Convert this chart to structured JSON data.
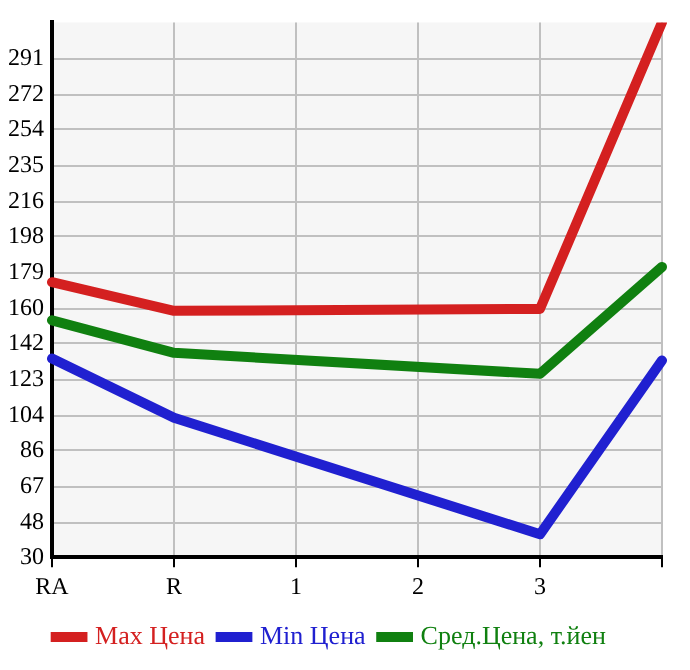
{
  "chart_data": {
    "type": "line",
    "categories": [
      "RA",
      "R",
      "1",
      "2",
      "3",
      null
    ],
    "series": [
      {
        "name": "Max Цена",
        "color": "#d42020",
        "values": [
          174,
          159,
          null,
          null,
          160,
          310
        ]
      },
      {
        "name": "Min Цена",
        "color": "#2020d0",
        "values": [
          134,
          103,
          null,
          null,
          42,
          133
        ]
      },
      {
        "name": "Сред.Цена, т.йен",
        "color": "#108010",
        "values": [
          154,
          137,
          null,
          null,
          126,
          182
        ]
      }
    ],
    "ylim": [
      30,
      310
    ],
    "yticks": [
      30,
      48,
      67,
      86,
      104,
      123,
      142,
      160,
      179,
      198,
      216,
      235,
      254,
      272,
      291
    ],
    "grid": true,
    "legend": "bottom",
    "marker": "none",
    "line_style": "solid"
  }
}
